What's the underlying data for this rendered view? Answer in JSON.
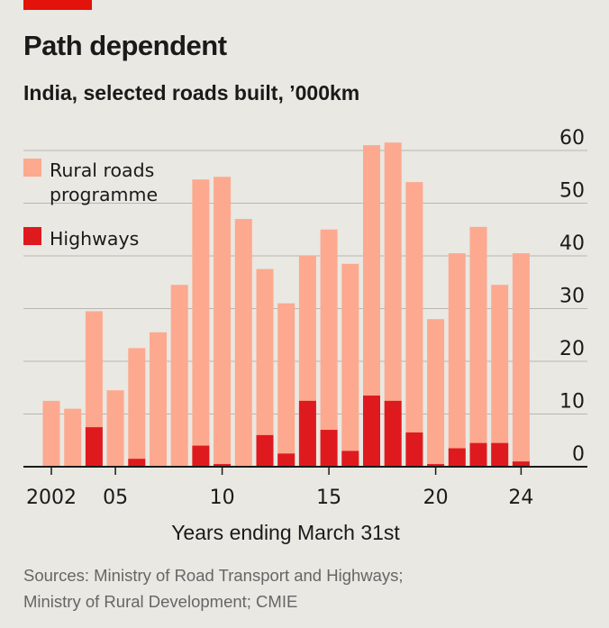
{
  "colors": {
    "rural": "#fda98f",
    "highway": "#df1a1f",
    "grid": "#b7b6b0",
    "axis": "#1a1a1a",
    "accent": "#e3120b"
  },
  "chart_data": {
    "type": "bar",
    "stacked": false,
    "title": "Path dependent",
    "subtitle": "India, selected roads built, ’000km",
    "xlabel": "Years ending March 31st",
    "ylabel": "",
    "ylim": [
      0,
      60
    ],
    "yticks": [
      "0",
      "10",
      "20",
      "30",
      "40",
      "50",
      "60"
    ],
    "y_axis_side": "right",
    "grid": true,
    "legend_position": "top-left",
    "x": [
      2002,
      2003,
      2004,
      2005,
      2006,
      2007,
      2008,
      2009,
      2010,
      2011,
      2012,
      2013,
      2014,
      2015,
      2016,
      2017,
      2018,
      2019,
      2020,
      2021,
      2022,
      2023,
      2024
    ],
    "x_tick_labels": [
      {
        "x": 2002,
        "label": "2002"
      },
      {
        "x": 2005,
        "label": "05"
      },
      {
        "x": 2010,
        "label": "10"
      },
      {
        "x": 2015,
        "label": "15"
      },
      {
        "x": 2020,
        "label": "20"
      },
      {
        "x": 2024,
        "label": "24"
      }
    ],
    "series": [
      {
        "name": "Rural roads programme",
        "values": [
          12.5,
          11,
          29.5,
          14.5,
          22.5,
          25.5,
          34.5,
          54.5,
          55,
          47,
          37.5,
          31,
          40,
          45,
          38.5,
          61,
          61.5,
          54,
          28,
          40.5,
          45.5,
          34.5,
          40.5
        ]
      },
      {
        "name": "Highways",
        "values": [
          0,
          0,
          7.5,
          0,
          1.5,
          0,
          0,
          4,
          0.5,
          0,
          6,
          2.5,
          12.5,
          7,
          3,
          13.5,
          12.5,
          6.5,
          0.5,
          3.5,
          4.5,
          4.5,
          1
        ]
      }
    ]
  },
  "legend": [
    {
      "lines": [
        "Rural roads",
        "programme"
      ],
      "series": "Rural roads programme",
      "color_key": "rural"
    },
    {
      "lines": [
        "Highways"
      ],
      "series": "Highways",
      "color_key": "highway"
    }
  ],
  "source_lines": [
    "Sources: Ministry of Road Transport and Highways;",
    "Ministry of Rural Development; CMIE"
  ]
}
